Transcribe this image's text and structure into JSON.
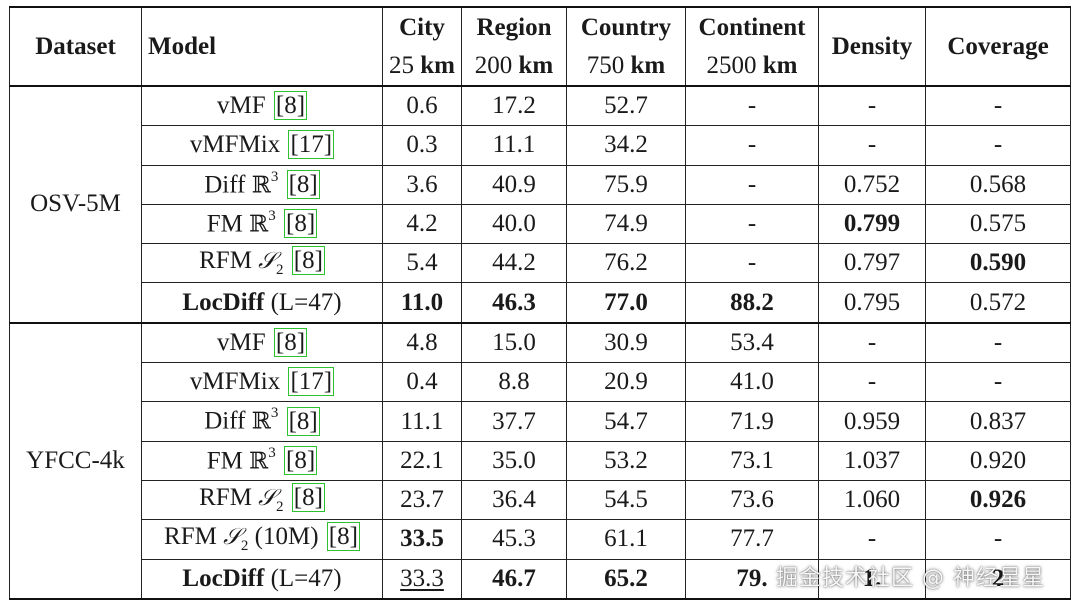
{
  "headers": {
    "dataset": "Dataset",
    "model": "Model",
    "city": {
      "title": "City",
      "value": "25",
      "unit": "km"
    },
    "region": {
      "title": "Region",
      "value": "200",
      "unit": "km"
    },
    "country": {
      "title": "Country",
      "value": "750",
      "unit": "km"
    },
    "continent": {
      "title": "Continent",
      "value": "2500",
      "unit": "km"
    },
    "density": "Density",
    "coverage": "Coverage"
  },
  "groups": [
    {
      "dataset": "OSV-5M",
      "rows": [
        {
          "model": {
            "name": "vMF",
            "cite": "8"
          },
          "city": "0.6",
          "region": "17.2",
          "country": "52.7",
          "continent": "-",
          "density": "-",
          "coverage": "-"
        },
        {
          "model": {
            "name": "vMFMix",
            "cite": "17"
          },
          "city": "0.3",
          "region": "11.1",
          "country": "34.2",
          "continent": "-",
          "density": "-",
          "coverage": "-"
        },
        {
          "model": {
            "name": "Diff",
            "space": "ℝ",
            "exp": "3",
            "cite": "8"
          },
          "city": "3.6",
          "region": "40.9",
          "country": "75.9",
          "continent": "-",
          "density": "0.752",
          "coverage": "0.568"
        },
        {
          "model": {
            "name": "FM",
            "space": "ℝ",
            "exp": "3",
            "cite": "8"
          },
          "city": "4.2",
          "region": "40.0",
          "country": "74.9",
          "continent": "-",
          "density": "0.799",
          "coverage": "0.575"
        },
        {
          "model": {
            "name": "RFM",
            "space": "𝒮",
            "sub": "2",
            "cite": "8"
          },
          "city": "5.4",
          "region": "44.2",
          "country": "76.2",
          "continent": "-",
          "density": "0.797",
          "coverage": "0.590"
        },
        {
          "model": {
            "name": "LocDiff",
            "param": "(L=47)"
          },
          "city": "11.0",
          "region": "46.3",
          "country": "77.0",
          "continent": "88.2",
          "density": "0.795",
          "coverage": "0.572"
        }
      ]
    },
    {
      "dataset": "YFCC-4k",
      "rows": [
        {
          "model": {
            "name": "vMF",
            "cite": "8"
          },
          "city": "4.8",
          "region": "15.0",
          "country": "30.9",
          "continent": "53.4",
          "density": "-",
          "coverage": "-"
        },
        {
          "model": {
            "name": "vMFMix",
            "cite": "17"
          },
          "city": "0.4",
          "region": "8.8",
          "country": "20.9",
          "continent": "41.0",
          "density": "-",
          "coverage": "-"
        },
        {
          "model": {
            "name": "Diff",
            "space": "ℝ",
            "exp": "3",
            "cite": "8"
          },
          "city": "11.1",
          "region": "37.7",
          "country": "54.7",
          "continent": "71.9",
          "density": "0.959",
          "coverage": "0.837"
        },
        {
          "model": {
            "name": "FM",
            "space": "ℝ",
            "exp": "3",
            "cite": "8"
          },
          "city": "22.1",
          "region": "35.0",
          "country": "53.2",
          "continent": "73.1",
          "density": "1.037",
          "coverage": "0.920"
        },
        {
          "model": {
            "name": "RFM",
            "space": "𝒮",
            "sub": "2",
            "cite": "8"
          },
          "city": "23.7",
          "region": "36.4",
          "country": "54.5",
          "continent": "73.6",
          "density": "1.060",
          "coverage": "0.926"
        },
        {
          "model": {
            "name": "RFM",
            "space": "𝒮",
            "sub": "2",
            "extra": "(10M)",
            "cite": "8"
          },
          "city": "33.5",
          "region": "45.3",
          "country": "61.1",
          "continent": "77.7",
          "density": "-",
          "coverage": "-"
        },
        {
          "model": {
            "name": "LocDiff",
            "param": "(L=47)"
          },
          "city": "33.3",
          "region": "46.7",
          "country": "65.2",
          "continent": "79.",
          "density": "1.",
          "coverage": "2"
        }
      ]
    }
  ],
  "watermark": "掘金技术社区 @ 神经星星"
}
